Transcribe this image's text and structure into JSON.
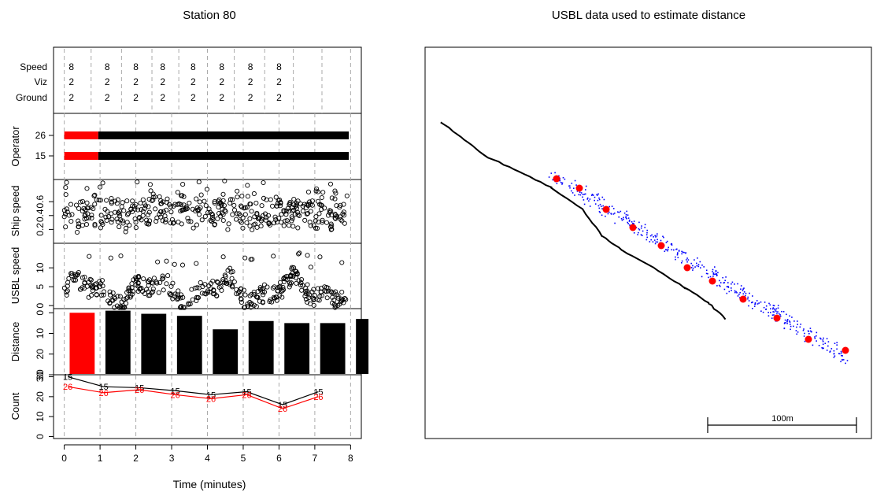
{
  "left": {
    "title": "Station 80",
    "xlabel": "Time (minutes)",
    "x_ticks": [
      0,
      1,
      2,
      3,
      4,
      5,
      6,
      7,
      8
    ],
    "xlim": [
      -0.3,
      8.3
    ],
    "info_panel": {
      "row_labels": [
        "Speed",
        "Viz",
        "Ground"
      ],
      "columns": [
        {
          "x": 0.2,
          "values": [
            "8",
            "2",
            "2"
          ]
        },
        {
          "x": 1.2,
          "values": [
            "8",
            "2",
            "2"
          ]
        },
        {
          "x": 2.0,
          "values": [
            "8",
            "2",
            "2"
          ]
        },
        {
          "x": 2.75,
          "values": [
            "8",
            "2",
            "2"
          ]
        },
        {
          "x": 3.6,
          "values": [
            "8",
            "2",
            "2"
          ]
        },
        {
          "x": 4.4,
          "values": [
            "8",
            "2",
            "2"
          ]
        },
        {
          "x": 5.2,
          "values": [
            "8",
            "2",
            "2"
          ]
        },
        {
          "x": 6.0,
          "values": [
            "8",
            "2",
            "2"
          ]
        }
      ],
      "dashed_lines": [
        0,
        0.75,
        1.6,
        2.45,
        3.2,
        4.0,
        4.75,
        5.6,
        6.4,
        7.2,
        8.0
      ]
    },
    "operator_panel": {
      "ylabel": "Operator",
      "operators": [
        {
          "label": "26",
          "segments": [
            {
              "from": 0,
              "to": 0.95,
              "color": "#ff0000"
            },
            {
              "from": 0.95,
              "to": 7.95,
              "color": "#000000"
            }
          ]
        },
        {
          "label": "15",
          "segments": [
            {
              "from": 0,
              "to": 0.95,
              "color": "#ff0000"
            },
            {
              "from": 0.95,
              "to": 7.95,
              "color": "#000000"
            }
          ]
        }
      ]
    },
    "ship_speed": {
      "ylabel": "Ship speed",
      "ticks": [
        "0.2",
        "0.4",
        "0.6"
      ],
      "tick_values": [
        0.2,
        0.4,
        0.6
      ],
      "ylim": [
        0.0,
        0.92
      ]
    },
    "usbl_speed": {
      "ylabel": "USBL speed",
      "ticks": [
        "0",
        "5",
        "10"
      ],
      "tick_values": [
        0,
        5,
        10
      ],
      "ylim": [
        -0.8,
        16.5
      ]
    },
    "distance": {
      "ylabel": "Distance",
      "ticks": [
        "30",
        "20",
        "10",
        "0"
      ],
      "tick_values": [
        30,
        20,
        10,
        0
      ],
      "ylim": [
        30,
        -2
      ],
      "bars": [
        {
          "x0": 0.15,
          "x1": 0.85,
          "value": 0,
          "color": "#ff0000"
        },
        {
          "x0": 1.15,
          "x1": 1.85,
          "value": -1,
          "color": "#000000"
        },
        {
          "x0": 2.15,
          "x1": 2.85,
          "value": 0.5,
          "color": "#000000"
        },
        {
          "x0": 3.15,
          "x1": 3.85,
          "value": 1.5,
          "color": "#000000"
        },
        {
          "x0": 4.15,
          "x1": 4.85,
          "value": 8,
          "color": "#000000"
        },
        {
          "x0": 5.15,
          "x1": 5.85,
          "value": 4,
          "color": "#000000"
        },
        {
          "x0": 6.15,
          "x1": 6.85,
          "value": 5,
          "color": "#000000"
        },
        {
          "x0": 7.15,
          "x1": 7.85,
          "value": 5,
          "color": "#000000"
        },
        {
          "x0": 8.15,
          "x1": 8.5,
          "value": 3,
          "color": "#000000"
        }
      ]
    },
    "count": {
      "ylabel": "Count",
      "ticks": [
        "0",
        "10",
        "20",
        "30"
      ],
      "tick_values": [
        0,
        10,
        20,
        30
      ],
      "ylim": [
        -1,
        31
      ],
      "series": [
        {
          "name": "15",
          "color": "#000000",
          "x": [
            0,
            1,
            2,
            3,
            4,
            5,
            6,
            7
          ],
          "y": [
            30,
            25,
            24.5,
            23,
            21,
            22.5,
            16,
            22.5
          ]
        },
        {
          "name": "26",
          "color": "#ff0000",
          "x": [
            0,
            1,
            2,
            3,
            4,
            5,
            6,
            7
          ],
          "y": [
            25,
            22,
            23.5,
            21,
            19,
            21,
            14,
            20
          ]
        }
      ]
    }
  },
  "right": {
    "title": "USBL data used to estimate distance",
    "scale_bar_label": "100m",
    "track_color": "#000000",
    "usbl_color": "#0000ff",
    "point_color": "#ff0000"
  }
}
